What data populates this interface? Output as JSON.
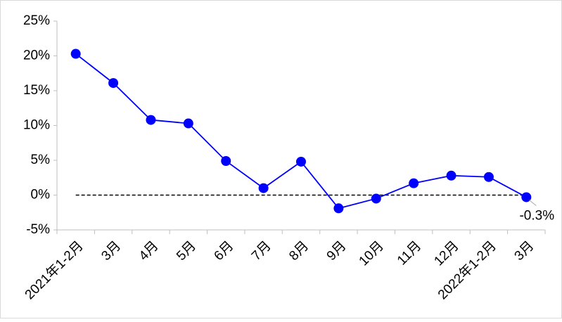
{
  "chart_data": {
    "type": "line",
    "categories": [
      "2021年1-2月",
      "3月",
      "4月",
      "5月",
      "6月",
      "7月",
      "8月",
      "9月",
      "10月",
      "11月",
      "12月",
      "2022年1-2月",
      "3月"
    ],
    "series": [
      {
        "color": "#0000ff",
        "values": [
          20.3,
          16.1,
          10.8,
          10.3,
          4.9,
          1.0,
          4.8,
          -1.9,
          -0.5,
          1.7,
          2.8,
          2.6,
          -0.3
        ],
        "value_labels": [
          null,
          null,
          null,
          null,
          null,
          null,
          null,
          null,
          null,
          null,
          null,
          null,
          "-0.3%"
        ]
      }
    ],
    "ylim": [
      -5,
      25
    ],
    "yticks": [
      {
        "value": -5,
        "label": "-5%"
      },
      {
        "value": 0,
        "label": "0%"
      },
      {
        "value": 5,
        "label": "5%"
      },
      {
        "value": 10,
        "label": "10%"
      },
      {
        "value": 15,
        "label": "15%"
      },
      {
        "value": 20,
        "label": "20%"
      },
      {
        "value": 25,
        "label": "25%"
      }
    ],
    "reference_line": 0
  }
}
